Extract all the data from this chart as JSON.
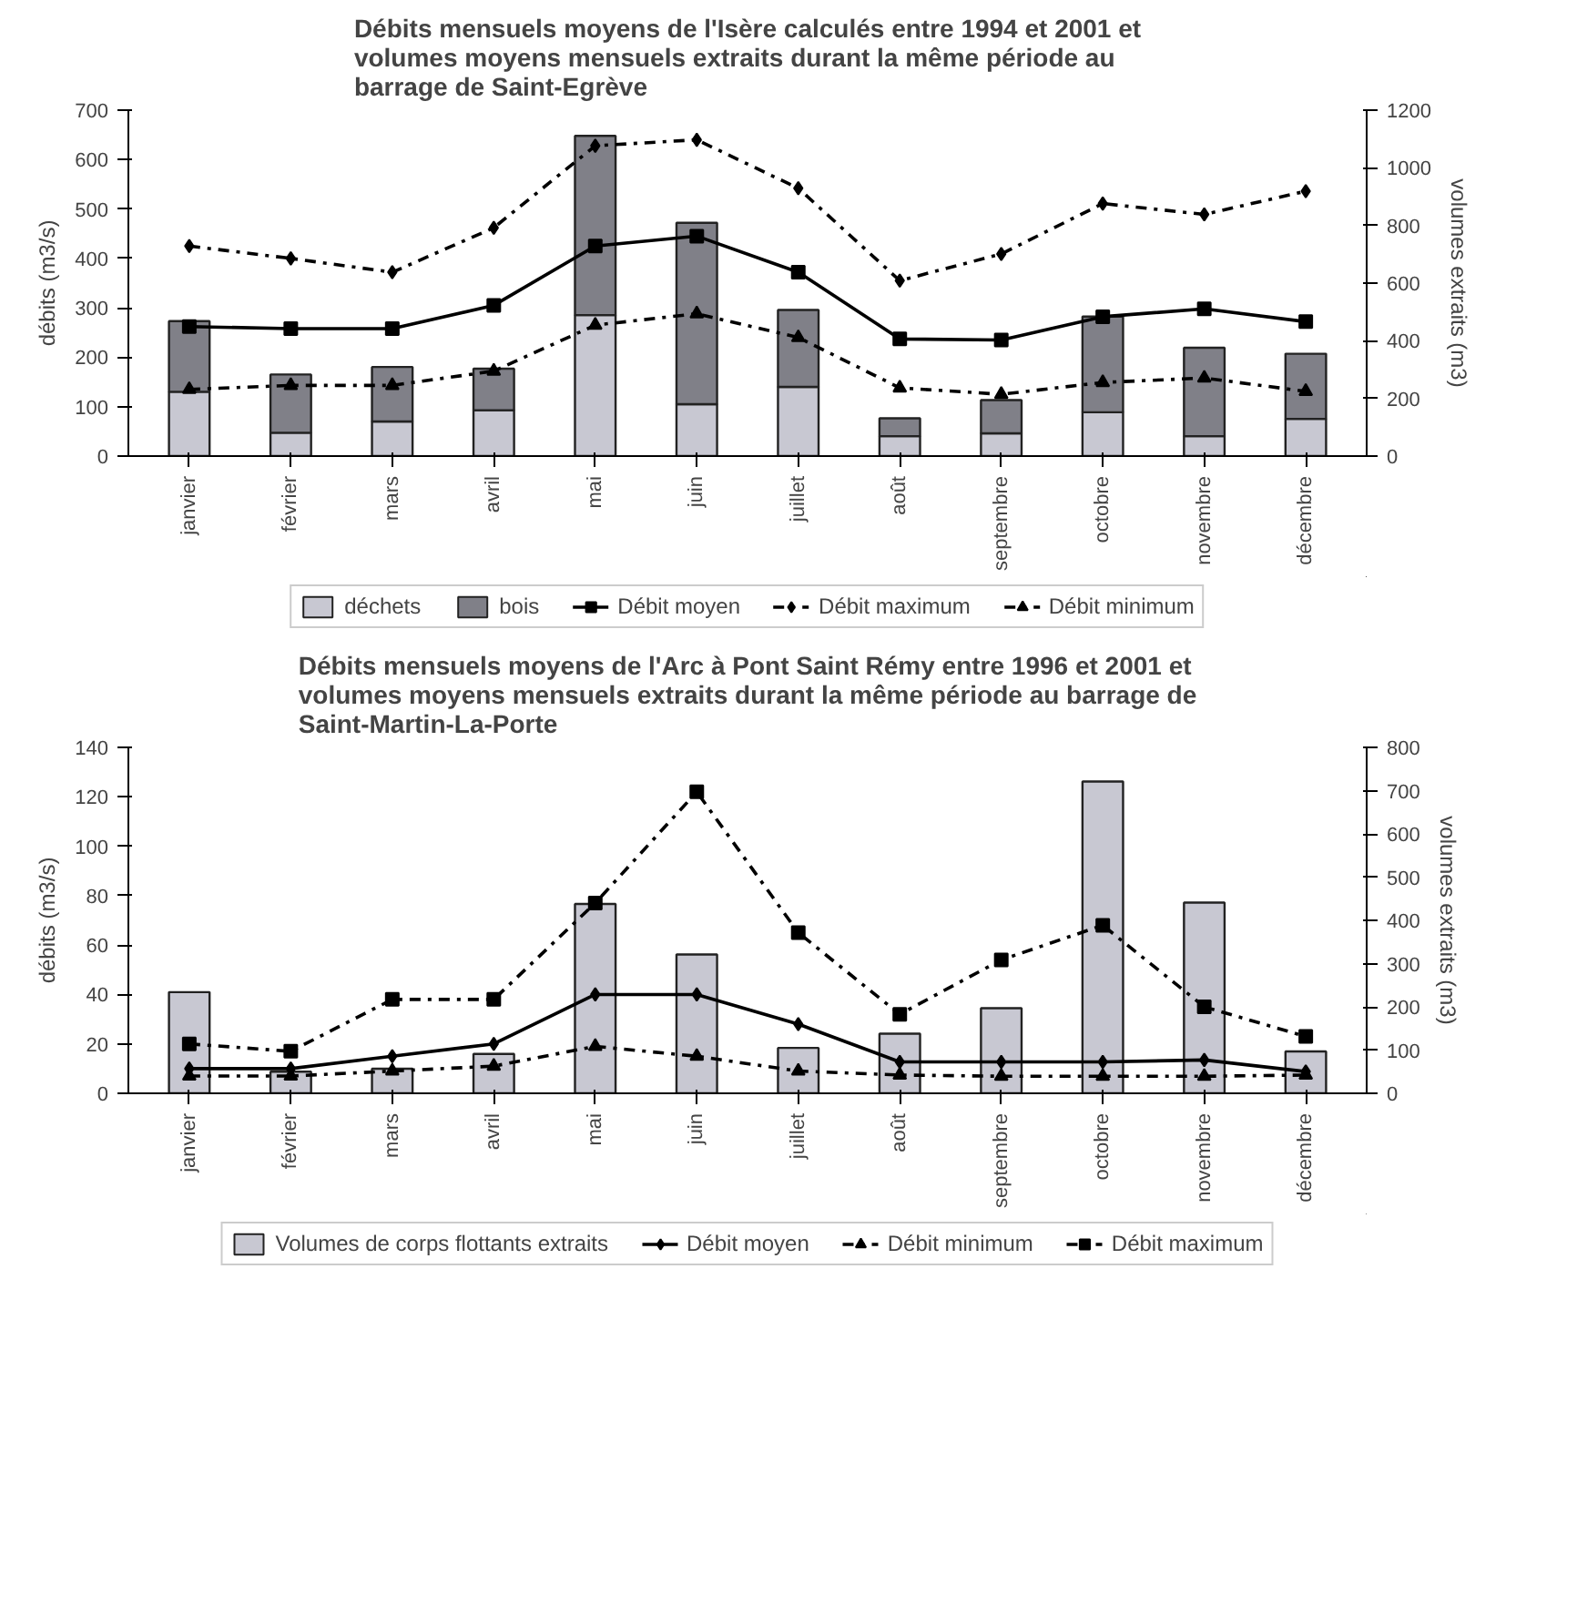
{
  "chart_data": [
    {
      "type": "bar",
      "title": "Débits mensuels moyens de l'Isère calculés entre 1994 et 2001 et\nvolumes moyens mensuels extraits durant la même période au\nbarrage de Saint-Egrève",
      "ylabel": "débits (m3/s)",
      "y2label": "volumes extraits (m3)",
      "categories": [
        "janvier",
        "février",
        "mars",
        "avril",
        "mai",
        "juin",
        "juillet",
        "août",
        "septembre",
        "octobre",
        "novembre",
        "décembre"
      ],
      "ylim": [
        0,
        700
      ],
      "yticks": [
        0,
        100,
        200,
        300,
        400,
        500,
        600,
        700
      ],
      "y2lim": [
        0,
        1200
      ],
      "y2ticks": [
        0,
        200,
        400,
        600,
        800,
        1000,
        1200
      ],
      "stacked": true,
      "grid": false,
      "legend": "bottom",
      "series": [
        {
          "name": "déchets",
          "axis": "y2",
          "color": "#c8c8d2",
          "values": [
            223,
            81,
            120,
            159,
            489,
            180,
            240,
            69,
            79,
            152,
            69,
            129
          ]
        },
        {
          "name": "bois",
          "axis": "y2",
          "color": "#808088",
          "values": [
            245,
            202,
            189,
            144,
            622,
            629,
            267,
            62,
            115,
            332,
            307,
            226
          ]
        },
        {
          "name": "Débit moyen",
          "type": "line",
          "color": "#000000",
          "marker": "square",
          "line_style": "solid",
          "values": [
            262,
            258,
            258,
            305,
            425,
            445,
            372,
            237,
            235,
            282,
            298,
            272
          ]
        },
        {
          "name": "Débit maximum",
          "type": "line",
          "color": "#000000",
          "marker": "diamond",
          "line_style": "dashed",
          "values": [
            425,
            400,
            372,
            462,
            628,
            640,
            542,
            355,
            409,
            511,
            489,
            536
          ]
        },
        {
          "name": "Débit minimum",
          "type": "line",
          "color": "#000000",
          "marker": "triangle",
          "line_style": "dashed",
          "values": [
            135,
            143,
            143,
            172,
            265,
            288,
            240,
            138,
            125,
            149,
            158,
            131
          ]
        }
      ]
    },
    {
      "type": "bar",
      "title": "Débits mensuels moyens de l'Arc à Pont Saint Rémy entre 1996 et 2001 et\nvolumes moyens mensuels extraits durant la même période au barrage de\nSaint-Martin-La-Porte",
      "ylabel": "débits (m3/s)",
      "y2label": "volumes extraits (m3)",
      "categories": [
        "janvier",
        "février",
        "mars",
        "avril",
        "mai",
        "juin",
        "juillet",
        "août",
        "septembre",
        "octobre",
        "novembre",
        "décembre"
      ],
      "ylim": [
        0,
        140
      ],
      "yticks": [
        0,
        20,
        40,
        60,
        80,
        100,
        120,
        140
      ],
      "y2lim": [
        0,
        800
      ],
      "y2ticks": [
        0,
        100,
        200,
        300,
        400,
        500,
        600,
        700,
        800
      ],
      "grid": false,
      "legend": "bottom",
      "series": [
        {
          "name": "Volumes de corps flottants extraits",
          "axis": "y2",
          "color": "#c8c8d2",
          "values": [
            234,
            50,
            57,
            91,
            438,
            321,
            105,
            138,
            197,
            721,
            441,
            97
          ]
        },
        {
          "name": "Débit moyen",
          "type": "line",
          "color": "#000000",
          "marker": "diamond",
          "line_style": "solid",
          "values": [
            10,
            10,
            15,
            20,
            40,
            40,
            28,
            12.7,
            12.7,
            12.7,
            13.5,
            8.8
          ]
        },
        {
          "name": "Débit minimum",
          "type": "line",
          "color": "#000000",
          "marker": "triangle",
          "line_style": "dashed",
          "values": [
            7,
            7,
            9,
            11,
            19,
            15,
            9,
            7.4,
            6.9,
            6.9,
            6.9,
            7.4
          ]
        },
        {
          "name": "Débit maximum",
          "type": "line",
          "color": "#000000",
          "marker": "square",
          "line_style": "dashed",
          "values": [
            20,
            17,
            38,
            38,
            77,
            122,
            65,
            32,
            54,
            68,
            35,
            23
          ]
        }
      ]
    }
  ]
}
